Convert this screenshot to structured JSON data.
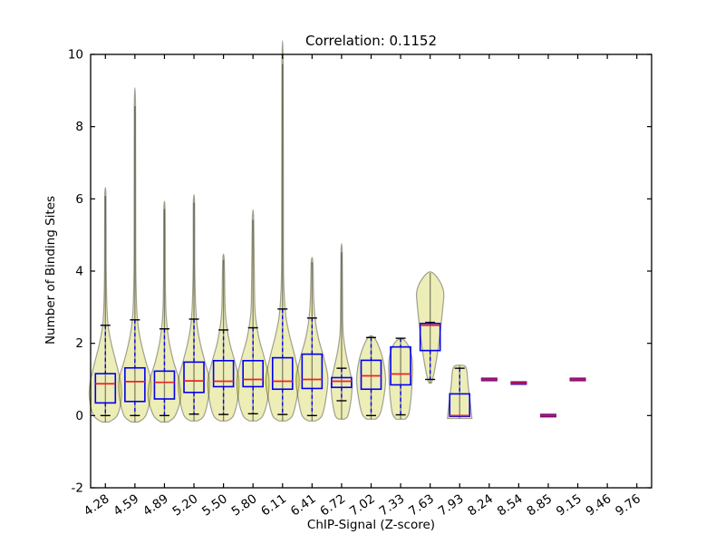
{
  "chart_data": {
    "type": "violin+box",
    "title": "Correlation: 0.1152",
    "xlabel": "ChIP-Signal (Z-score)",
    "ylabel": "Number of Binding Sites",
    "ylim": [
      -2,
      10
    ],
    "yticks": [
      "-2",
      "0",
      "2",
      "4",
      "6",
      "8",
      "10"
    ],
    "grid": false,
    "legend": null,
    "categories": [
      "4.28",
      "4.59",
      "4.89",
      "5.20",
      "5.50",
      "5.80",
      "6.11",
      "6.41",
      "6.72",
      "7.02",
      "7.33",
      "7.63",
      "7.93",
      "8.24",
      "8.54",
      "8.85",
      "9.15",
      "9.46",
      "9.76"
    ],
    "violins": [
      {
        "category": "4.28",
        "whisker_low": 0.0,
        "q1": 0.35,
        "median": 0.88,
        "q3": 1.16,
        "whisker_high": 2.5,
        "vmin": -0.18,
        "vmax": 6.08,
        "profile": [
          [
            -0.18,
            4
          ],
          [
            0.0,
            13
          ],
          [
            0.45,
            17.5
          ],
          [
            0.9,
            17
          ],
          [
            1.5,
            11.5
          ],
          [
            2.0,
            6.5
          ],
          [
            2.5,
            3
          ],
          [
            3.1,
            1.6
          ],
          [
            4.2,
            0.9
          ],
          [
            6.08,
            0.7
          ]
        ]
      },
      {
        "category": "4.59",
        "whisker_low": 0.0,
        "q1": 0.39,
        "median": 0.94,
        "q3": 1.32,
        "whisker_high": 2.65,
        "vmin": -0.18,
        "vmax": 8.57,
        "profile": [
          [
            -0.18,
            4
          ],
          [
            0.0,
            12
          ],
          [
            0.5,
            17
          ],
          [
            1.0,
            17.5
          ],
          [
            1.5,
            12
          ],
          [
            2.0,
            7
          ],
          [
            2.5,
            3.5
          ],
          [
            3.1,
            1.8
          ],
          [
            4.5,
            0.9
          ],
          [
            8.57,
            0.7
          ]
        ]
      },
      {
        "category": "4.89",
        "whisker_low": 0.0,
        "q1": 0.46,
        "median": 0.92,
        "q3": 1.23,
        "whisker_high": 2.4,
        "vmin": -0.18,
        "vmax": 5.72,
        "profile": [
          [
            -0.18,
            4
          ],
          [
            0.0,
            12
          ],
          [
            0.5,
            18
          ],
          [
            1.0,
            16
          ],
          [
            1.5,
            10
          ],
          [
            2.0,
            5.5
          ],
          [
            2.5,
            2.8
          ],
          [
            3.0,
            1.5
          ],
          [
            4.0,
            0.9
          ],
          [
            5.72,
            0.7
          ]
        ]
      },
      {
        "category": "5.20",
        "whisker_low": 0.04,
        "q1": 0.64,
        "median": 0.96,
        "q3": 1.48,
        "whisker_high": 2.67,
        "vmin": -0.15,
        "vmax": 5.9,
        "profile": [
          [
            -0.15,
            4
          ],
          [
            0.0,
            11
          ],
          [
            0.5,
            16
          ],
          [
            1.0,
            17
          ],
          [
            1.5,
            12
          ],
          [
            2.0,
            7
          ],
          [
            2.5,
            3.5
          ],
          [
            3.1,
            1.8
          ],
          [
            4.2,
            0.9
          ],
          [
            5.9,
            0.7
          ]
        ]
      },
      {
        "category": "5.50",
        "whisker_low": 0.03,
        "q1": 0.8,
        "median": 0.95,
        "q3": 1.52,
        "whisker_high": 2.37,
        "vmin": -0.15,
        "vmax": 4.31,
        "profile": [
          [
            -0.15,
            4
          ],
          [
            0.0,
            11
          ],
          [
            0.5,
            16
          ],
          [
            1.0,
            17
          ],
          [
            1.5,
            12.5
          ],
          [
            2.0,
            7
          ],
          [
            2.5,
            3.5
          ],
          [
            3.0,
            1.8
          ],
          [
            4.31,
            0.8
          ]
        ]
      },
      {
        "category": "5.80",
        "whisker_low": 0.05,
        "q1": 0.8,
        "median": 1.0,
        "q3": 1.52,
        "whisker_high": 2.43,
        "vmin": -0.15,
        "vmax": 5.42,
        "profile": [
          [
            -0.15,
            4
          ],
          [
            0.0,
            11
          ],
          [
            0.5,
            16.5
          ],
          [
            1.05,
            17.5
          ],
          [
            1.6,
            12.5
          ],
          [
            2.1,
            7
          ],
          [
            2.6,
            3.5
          ],
          [
            3.2,
            1.8
          ],
          [
            5.42,
            0.8
          ]
        ]
      },
      {
        "category": "6.11",
        "whisker_low": 0.03,
        "q1": 0.73,
        "median": 0.95,
        "q3": 1.6,
        "whisker_high": 2.95,
        "vmin": -0.15,
        "vmax": 9.73,
        "profile": [
          [
            -0.15,
            4
          ],
          [
            0.0,
            11
          ],
          [
            0.5,
            16
          ],
          [
            1.0,
            18.5
          ],
          [
            1.6,
            14
          ],
          [
            2.2,
            8
          ],
          [
            2.7,
            4
          ],
          [
            3.3,
            2
          ],
          [
            4.5,
            1
          ],
          [
            9.73,
            0.7
          ]
        ]
      },
      {
        "category": "6.41",
        "whisker_low": 0.0,
        "q1": 0.75,
        "median": 1.0,
        "q3": 1.7,
        "whisker_high": 2.7,
        "vmin": -0.15,
        "vmax": 4.25,
        "profile": [
          [
            -0.15,
            4
          ],
          [
            0.0,
            11
          ],
          [
            0.5,
            15.5
          ],
          [
            1.05,
            17.5
          ],
          [
            1.6,
            13
          ],
          [
            2.1,
            7.5
          ],
          [
            2.6,
            3.8
          ],
          [
            3.2,
            1.9
          ],
          [
            4.25,
            0.9
          ]
        ]
      },
      {
        "category": "6.72",
        "whisker_low": 0.41,
        "q1": 0.78,
        "median": 0.95,
        "q3": 1.05,
        "whisker_high": 1.31,
        "vmin": -0.1,
        "vmax": 4.52,
        "profile": [
          [
            -0.1,
            3
          ],
          [
            0.0,
            7
          ],
          [
            0.45,
            10.5
          ],
          [
            0.9,
            11.5
          ],
          [
            1.3,
            8.5
          ],
          [
            1.7,
            5
          ],
          [
            2.1,
            2.5
          ],
          [
            2.6,
            1.3
          ],
          [
            4.52,
            0.7
          ]
        ]
      },
      {
        "category": "7.02",
        "whisker_low": 0.0,
        "q1": 0.73,
        "median": 1.1,
        "q3": 1.53,
        "whisker_high": 2.16,
        "vmin": -0.1,
        "vmax": 2.2,
        "profile": [
          [
            -0.1,
            5
          ],
          [
            0.05,
            10
          ],
          [
            0.5,
            14
          ],
          [
            1.0,
            16
          ],
          [
            1.5,
            13.5
          ],
          [
            1.85,
            9.5
          ],
          [
            2.1,
            5
          ],
          [
            2.2,
            1.5
          ]
        ]
      },
      {
        "category": "7.33",
        "whisker_low": 0.02,
        "q1": 0.85,
        "median": 1.15,
        "q3": 1.9,
        "whisker_high": 2.14,
        "vmin": -0.1,
        "vmax": 2.12,
        "profile": [
          [
            -0.1,
            5
          ],
          [
            0.05,
            9
          ],
          [
            0.5,
            11.5
          ],
          [
            1.1,
            13
          ],
          [
            1.5,
            13
          ],
          [
            1.85,
            10
          ],
          [
            2.05,
            5.5
          ],
          [
            2.12,
            1.5
          ]
        ]
      },
      {
        "category": "7.63",
        "whisker_low": 1.0,
        "q1": 1.8,
        "median": 2.5,
        "q3": 2.55,
        "whisker_high": 2.58,
        "vmin": 0.9,
        "vmax": 3.95,
        "profile": [
          [
            0.9,
            1.5
          ],
          [
            1.2,
            4.5
          ],
          [
            1.8,
            8.5
          ],
          [
            2.4,
            11.5
          ],
          [
            3.0,
            14
          ],
          [
            3.4,
            15
          ],
          [
            3.7,
            11
          ],
          [
            3.95,
            3
          ]
        ]
      },
      {
        "category": "7.93",
        "whisker_low": 0.0,
        "q1": -0.02,
        "median": 0.0,
        "q3": 0.6,
        "whisker_high": 1.31,
        "vmin": -0.08,
        "vmax": 1.38,
        "profile": [
          [
            -0.08,
            13.5
          ],
          [
            0.3,
            12
          ],
          [
            0.7,
            10
          ],
          [
            1.0,
            8.8
          ],
          [
            1.25,
            7.8
          ],
          [
            1.38,
            5
          ]
        ]
      }
    ],
    "singletons": [
      {
        "category": "8.24",
        "value": 1.0
      },
      {
        "category": "8.54",
        "value": 0.9
      },
      {
        "category": "8.85",
        "value": 0.0
      },
      {
        "category": "9.15",
        "value": 1.0
      }
    ],
    "empty_categories": [
      "9.46",
      "9.76"
    ],
    "colors": {
      "violin_fill": "rgba(191,191,0,0.28)",
      "violin_edge": "rgba(0,0,0,0.35)",
      "violin_center_line": "rgba(0,0,0,0.45)",
      "box": "#0000ee",
      "whisker": "#0000ee",
      "cap": "#000000",
      "median": "#ee2222",
      "singleton": "#cc1136",
      "axis": "#000000",
      "background": "#ffffff"
    }
  }
}
